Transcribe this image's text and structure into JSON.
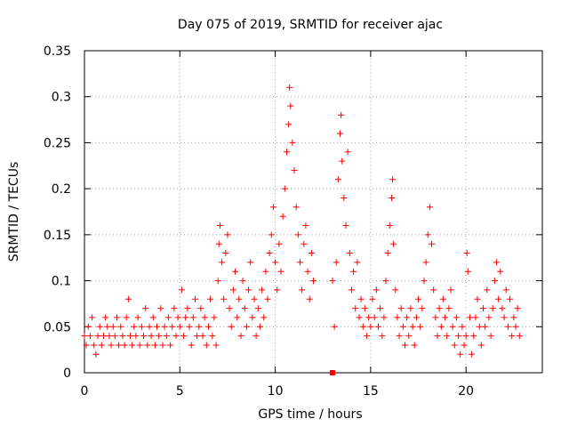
{
  "chart_data": {
    "type": "scatter",
    "title": "Day 075 of 2019, SRMTID for receiver ajac",
    "xlabel": "GPS time / hours",
    "ylabel": "SRMTID / TECUs",
    "xlim": [
      0,
      24
    ],
    "ylim": [
      0,
      0.35
    ],
    "x_ticks": [
      0,
      5,
      10,
      15,
      20
    ],
    "x_tick_labels": [
      "0",
      "5",
      "10",
      "15",
      "20"
    ],
    "y_ticks": [
      0,
      0.05,
      0.1,
      0.15,
      0.2,
      0.25,
      0.3,
      0.35
    ],
    "y_tick_labels": [
      "0",
      "0.05",
      "0.1",
      "0.15",
      "0.2",
      "0.25",
      "0.3",
      "0.35"
    ],
    "grid": true,
    "marker": "plus",
    "color": "#ff0000",
    "special_marker": {
      "x": 13.0,
      "y": 0.0,
      "shape": "square"
    },
    "series": [
      {
        "name": "SRMTID",
        "points": [
          [
            0.0,
            0.04
          ],
          [
            0.1,
            0.03
          ],
          [
            0.2,
            0.05
          ],
          [
            0.3,
            0.04
          ],
          [
            0.4,
            0.06
          ],
          [
            0.5,
            0.03
          ],
          [
            0.6,
            0.02
          ],
          [
            0.7,
            0.04
          ],
          [
            0.8,
            0.05
          ],
          [
            0.9,
            0.03
          ],
          [
            1.0,
            0.04
          ],
          [
            1.1,
            0.06
          ],
          [
            1.2,
            0.05
          ],
          [
            1.3,
            0.04
          ],
          [
            1.4,
            0.03
          ],
          [
            1.5,
            0.05
          ],
          [
            1.6,
            0.04
          ],
          [
            1.7,
            0.06
          ],
          [
            1.8,
            0.03
          ],
          [
            1.9,
            0.05
          ],
          [
            2.0,
            0.04
          ],
          [
            2.1,
            0.03
          ],
          [
            2.2,
            0.06
          ],
          [
            2.3,
            0.08
          ],
          [
            2.4,
            0.04
          ],
          [
            2.5,
            0.03
          ],
          [
            2.6,
            0.05
          ],
          [
            2.7,
            0.04
          ],
          [
            2.8,
            0.06
          ],
          [
            2.9,
            0.03
          ],
          [
            3.0,
            0.05
          ],
          [
            3.1,
            0.04
          ],
          [
            3.2,
            0.07
          ],
          [
            3.3,
            0.03
          ],
          [
            3.4,
            0.05
          ],
          [
            3.5,
            0.04
          ],
          [
            3.6,
            0.06
          ],
          [
            3.7,
            0.03
          ],
          [
            3.8,
            0.05
          ],
          [
            3.9,
            0.04
          ],
          [
            4.0,
            0.07
          ],
          [
            4.1,
            0.03
          ],
          [
            4.2,
            0.05
          ],
          [
            4.3,
            0.04
          ],
          [
            4.4,
            0.06
          ],
          [
            4.5,
            0.03
          ],
          [
            4.6,
            0.05
          ],
          [
            4.7,
            0.07
          ],
          [
            4.8,
            0.04
          ],
          [
            4.9,
            0.06
          ],
          [
            5.0,
            0.05
          ],
          [
            5.1,
            0.09
          ],
          [
            5.2,
            0.04
          ],
          [
            5.3,
            0.06
          ],
          [
            5.4,
            0.07
          ],
          [
            5.5,
            0.05
          ],
          [
            5.6,
            0.03
          ],
          [
            5.7,
            0.06
          ],
          [
            5.8,
            0.08
          ],
          [
            5.9,
            0.04
          ],
          [
            6.0,
            0.05
          ],
          [
            6.1,
            0.07
          ],
          [
            6.2,
            0.04
          ],
          [
            6.3,
            0.06
          ],
          [
            6.4,
            0.03
          ],
          [
            6.5,
            0.05
          ],
          [
            6.6,
            0.08
          ],
          [
            6.7,
            0.04
          ],
          [
            6.8,
            0.06
          ],
          [
            6.9,
            0.03
          ],
          [
            7.0,
            0.1
          ],
          [
            7.05,
            0.14
          ],
          [
            7.1,
            0.16
          ],
          [
            7.2,
            0.12
          ],
          [
            7.3,
            0.08
          ],
          [
            7.4,
            0.13
          ],
          [
            7.5,
            0.15
          ],
          [
            7.6,
            0.07
          ],
          [
            7.7,
            0.05
          ],
          [
            7.8,
            0.09
          ],
          [
            7.9,
            0.11
          ],
          [
            8.0,
            0.06
          ],
          [
            8.1,
            0.08
          ],
          [
            8.2,
            0.04
          ],
          [
            8.3,
            0.1
          ],
          [
            8.4,
            0.07
          ],
          [
            8.5,
            0.05
          ],
          [
            8.6,
            0.09
          ],
          [
            8.7,
            0.12
          ],
          [
            8.8,
            0.06
          ],
          [
            8.9,
            0.08
          ],
          [
            9.0,
            0.04
          ],
          [
            9.1,
            0.07
          ],
          [
            9.2,
            0.05
          ],
          [
            9.3,
            0.09
          ],
          [
            9.4,
            0.06
          ],
          [
            9.5,
            0.11
          ],
          [
            9.6,
            0.08
          ],
          [
            9.7,
            0.13
          ],
          [
            9.8,
            0.15
          ],
          [
            9.9,
            0.18
          ],
          [
            10.0,
            0.12
          ],
          [
            10.1,
            0.09
          ],
          [
            10.2,
            0.14
          ],
          [
            10.3,
            0.11
          ],
          [
            10.4,
            0.17
          ],
          [
            10.5,
            0.2
          ],
          [
            10.6,
            0.24
          ],
          [
            10.7,
            0.27
          ],
          [
            10.75,
            0.31
          ],
          [
            10.8,
            0.29
          ],
          [
            10.9,
            0.25
          ],
          [
            11.0,
            0.22
          ],
          [
            11.1,
            0.18
          ],
          [
            11.2,
            0.15
          ],
          [
            11.3,
            0.12
          ],
          [
            11.4,
            0.09
          ],
          [
            11.5,
            0.14
          ],
          [
            11.6,
            0.16
          ],
          [
            11.7,
            0.11
          ],
          [
            11.8,
            0.08
          ],
          [
            11.9,
            0.13
          ],
          [
            12.0,
            0.1
          ],
          [
            13.0,
            0.1
          ],
          [
            13.1,
            0.05
          ],
          [
            13.2,
            0.12
          ],
          [
            13.3,
            0.21
          ],
          [
            13.4,
            0.26
          ],
          [
            13.45,
            0.28
          ],
          [
            13.5,
            0.23
          ],
          [
            13.6,
            0.19
          ],
          [
            13.7,
            0.16
          ],
          [
            13.8,
            0.24
          ],
          [
            13.9,
            0.13
          ],
          [
            14.0,
            0.09
          ],
          [
            14.1,
            0.11
          ],
          [
            14.2,
            0.07
          ],
          [
            14.3,
            0.12
          ],
          [
            14.4,
            0.06
          ],
          [
            14.5,
            0.08
          ],
          [
            14.6,
            0.05
          ],
          [
            14.7,
            0.07
          ],
          [
            14.8,
            0.04
          ],
          [
            14.9,
            0.06
          ],
          [
            15.0,
            0.05
          ],
          [
            15.1,
            0.08
          ],
          [
            15.2,
            0.06
          ],
          [
            15.3,
            0.09
          ],
          [
            15.4,
            0.05
          ],
          [
            15.5,
            0.07
          ],
          [
            15.6,
            0.04
          ],
          [
            15.7,
            0.06
          ],
          [
            15.8,
            0.1
          ],
          [
            15.9,
            0.13
          ],
          [
            16.0,
            0.16
          ],
          [
            16.1,
            0.19
          ],
          [
            16.15,
            0.21
          ],
          [
            16.2,
            0.14
          ],
          [
            16.3,
            0.09
          ],
          [
            16.4,
            0.06
          ],
          [
            16.5,
            0.04
          ],
          [
            16.6,
            0.07
          ],
          [
            16.7,
            0.05
          ],
          [
            16.8,
            0.03
          ],
          [
            16.9,
            0.06
          ],
          [
            17.0,
            0.04
          ],
          [
            17.1,
            0.07
          ],
          [
            17.2,
            0.05
          ],
          [
            17.3,
            0.03
          ],
          [
            17.4,
            0.06
          ],
          [
            17.5,
            0.08
          ],
          [
            17.6,
            0.05
          ],
          [
            17.7,
            0.07
          ],
          [
            17.8,
            0.1
          ],
          [
            17.9,
            0.12
          ],
          [
            18.0,
            0.15
          ],
          [
            18.1,
            0.18
          ],
          [
            18.2,
            0.14
          ],
          [
            18.3,
            0.09
          ],
          [
            18.4,
            0.06
          ],
          [
            18.5,
            0.04
          ],
          [
            18.6,
            0.07
          ],
          [
            18.7,
            0.05
          ],
          [
            18.8,
            0.08
          ],
          [
            18.9,
            0.06
          ],
          [
            19.0,
            0.04
          ],
          [
            19.1,
            0.07
          ],
          [
            19.2,
            0.09
          ],
          [
            19.3,
            0.05
          ],
          [
            19.4,
            0.03
          ],
          [
            19.5,
            0.06
          ],
          [
            19.6,
            0.04
          ],
          [
            19.7,
            0.02
          ],
          [
            19.8,
            0.05
          ],
          [
            19.9,
            0.03
          ],
          [
            20.0,
            0.04
          ],
          [
            20.05,
            0.13
          ],
          [
            20.1,
            0.11
          ],
          [
            20.2,
            0.06
          ],
          [
            20.3,
            0.02
          ],
          [
            20.4,
            0.04
          ],
          [
            20.5,
            0.06
          ],
          [
            20.6,
            0.08
          ],
          [
            20.7,
            0.05
          ],
          [
            20.8,
            0.03
          ],
          [
            20.9,
            0.07
          ],
          [
            21.0,
            0.05
          ],
          [
            21.1,
            0.09
          ],
          [
            21.2,
            0.06
          ],
          [
            21.3,
            0.04
          ],
          [
            21.4,
            0.07
          ],
          [
            21.5,
            0.1
          ],
          [
            21.6,
            0.12
          ],
          [
            21.7,
            0.08
          ],
          [
            21.8,
            0.11
          ],
          [
            21.9,
            0.07
          ],
          [
            22.0,
            0.06
          ],
          [
            22.1,
            0.09
          ],
          [
            22.2,
            0.05
          ],
          [
            22.3,
            0.08
          ],
          [
            22.4,
            0.04
          ],
          [
            22.5,
            0.06
          ],
          [
            22.6,
            0.05
          ],
          [
            22.7,
            0.07
          ],
          [
            22.8,
            0.04
          ]
        ]
      }
    ]
  }
}
